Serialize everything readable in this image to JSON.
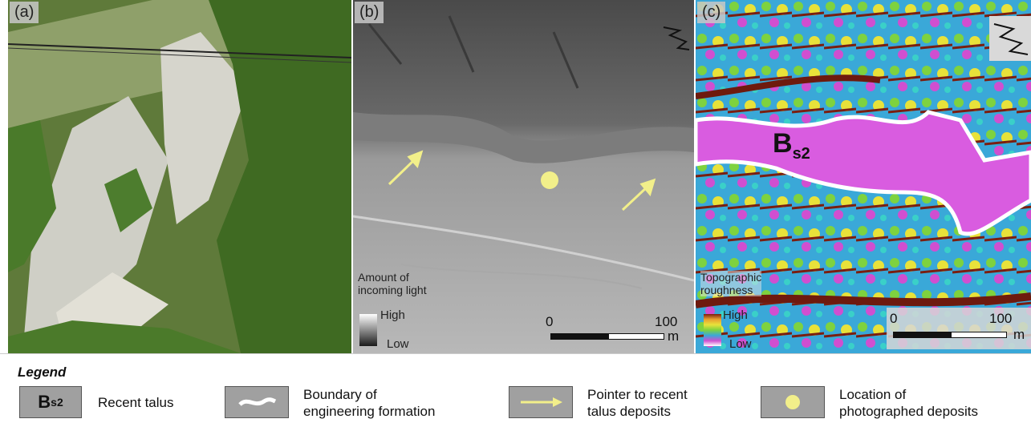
{
  "panels": {
    "a": {
      "label": "(a)"
    },
    "b": {
      "label": "(b)",
      "legend_title_line1": "Amount of",
      "legend_title_line2": "incoming light",
      "high": "High",
      "low": "Low",
      "scale_min": "0",
      "scale_max": "100",
      "scale_unit": "m"
    },
    "c": {
      "label": "(c)",
      "legend_title_line1": "Topographic",
      "legend_title_line2": "roughness",
      "high": "High",
      "low": "Low",
      "scale_min": "0",
      "scale_max": "100",
      "scale_unit": "m",
      "unit_label": "B",
      "unit_sub": "s2"
    }
  },
  "legend": {
    "title": "Legend",
    "items": [
      {
        "symbol_text": "B",
        "symbol_sub": "s2",
        "line1": "Recent talus",
        "line2": ""
      },
      {
        "line1": "Boundary of",
        "line2": "engineering formation"
      },
      {
        "line1": "Pointer to recent",
        "line2": "talus deposits"
      },
      {
        "line1": "Location of",
        "line2": "photographed deposits"
      }
    ]
  },
  "colors": {
    "pointer": "#f2ef8a",
    "boundary": "#ffffff",
    "symbol_bg": "#a0a0a0"
  }
}
